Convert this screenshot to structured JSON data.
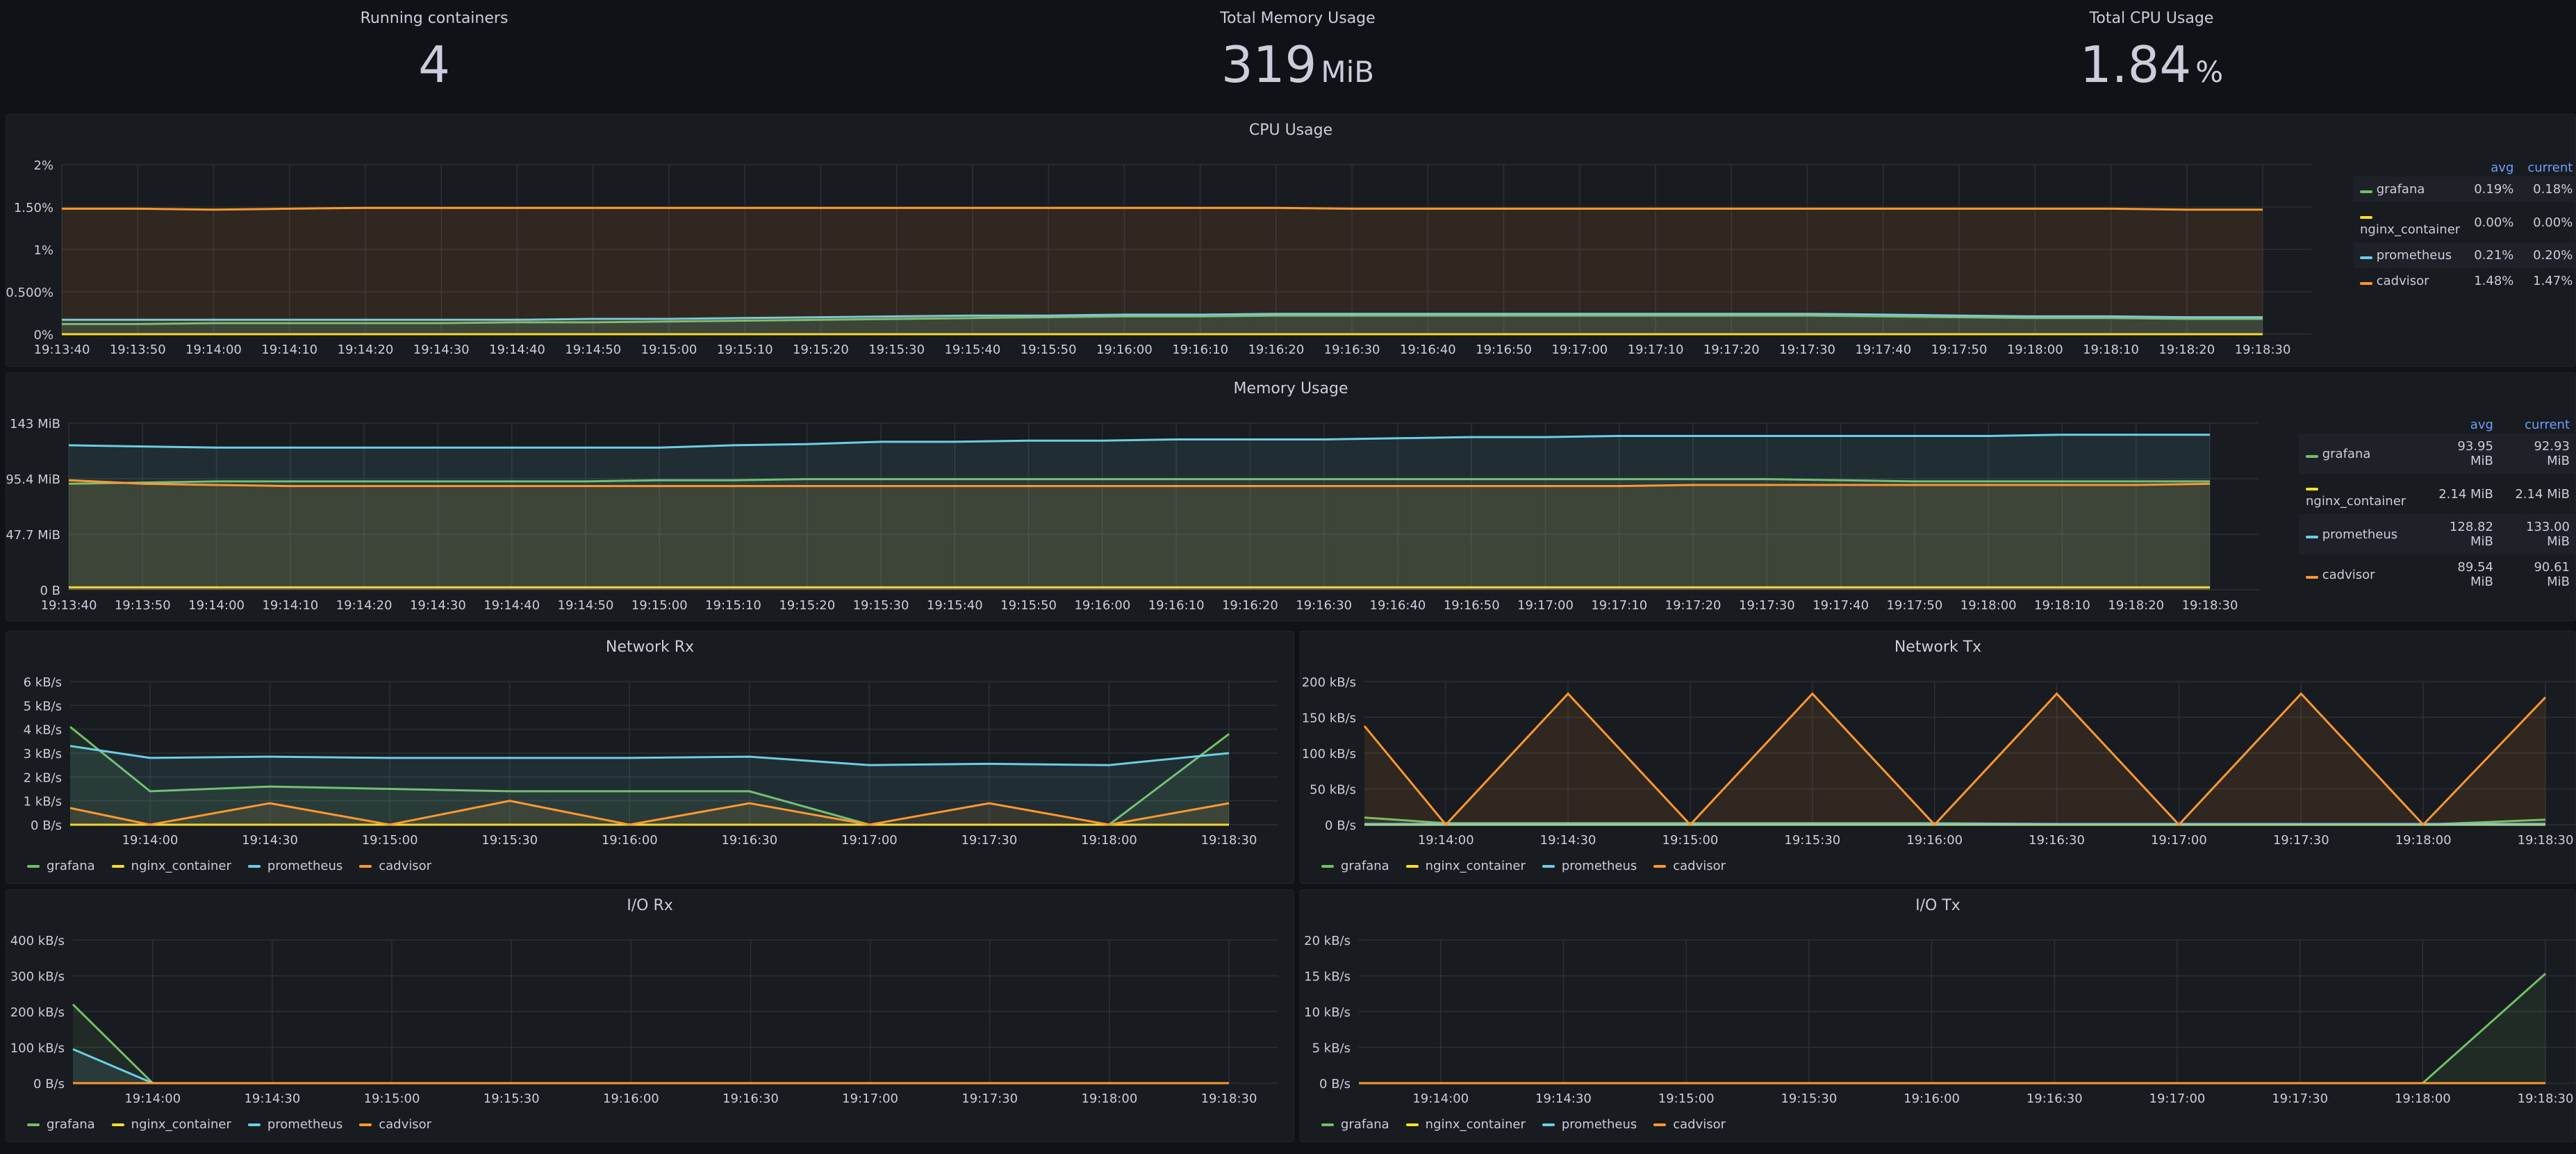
{
  "stats": [
    {
      "title": "Running containers",
      "value": "4",
      "unit": ""
    },
    {
      "title": "Total Memory Usage",
      "value": "319",
      "unit": "MiB"
    },
    {
      "title": "Total CPU Usage",
      "value": "1.84",
      "unit": "%"
    }
  ],
  "colors": {
    "grafana": "#73bf69",
    "nginx_container": "#fade2a",
    "prometheus": "#8ab8ff",
    "cadvisor": "#ff9830",
    "prometheus_line": "#6ccde6"
  },
  "legend_labels": [
    "grafana",
    "nginx_container",
    "prometheus",
    "cadvisor"
  ],
  "cpu": {
    "title": "CPU Usage",
    "legend_headers": [
      "avg",
      "current"
    ],
    "legend_rows": [
      {
        "name": "grafana",
        "avg": "0.19%",
        "current": "0.18%"
      },
      {
        "name": "nginx_container",
        "avg": "0.00%",
        "current": "0.00%"
      },
      {
        "name": "prometheus",
        "avg": "0.21%",
        "current": "0.20%"
      },
      {
        "name": "cadvisor",
        "avg": "1.48%",
        "current": "1.47%"
      }
    ]
  },
  "memory": {
    "title": "Memory Usage",
    "legend_headers": [
      "avg",
      "current"
    ],
    "legend_rows": [
      {
        "name": "grafana",
        "avg": "93.95 MiB",
        "current": "92.93 MiB"
      },
      {
        "name": "nginx_container",
        "avg": "2.14 MiB",
        "current": "2.14 MiB"
      },
      {
        "name": "prometheus",
        "avg": "128.82 MiB",
        "current": "133.00 MiB"
      },
      {
        "name": "cadvisor",
        "avg": "89.54 MiB",
        "current": "90.61 MiB"
      }
    ]
  },
  "netrx": {
    "title": "Network Rx"
  },
  "nettx": {
    "title": "Network Tx"
  },
  "iorx": {
    "title": "I/O Rx"
  },
  "iotx": {
    "title": "I/O Tx"
  },
  "chart_data": [
    {
      "id": "cpu",
      "type": "line",
      "title": "CPU Usage",
      "x": [
        "19:13:40",
        "19:13:50",
        "19:14:00",
        "19:14:10",
        "19:14:20",
        "19:14:30",
        "19:14:40",
        "19:14:50",
        "19:15:00",
        "19:15:10",
        "19:15:20",
        "19:15:30",
        "19:15:40",
        "19:15:50",
        "19:16:00",
        "19:16:10",
        "19:16:20",
        "19:16:30",
        "19:16:40",
        "19:16:50",
        "19:17:00",
        "19:17:10",
        "19:17:20",
        "19:17:30",
        "19:17:40",
        "19:17:50",
        "19:18:00",
        "19:18:10",
        "19:18:20",
        "19:18:30"
      ],
      "ylim": [
        0,
        2
      ],
      "yticks": [
        "0%",
        "0.500%",
        "1%",
        "1.50%",
        "2%"
      ],
      "series": [
        {
          "name": "grafana",
          "values": [
            0.12,
            0.12,
            0.13,
            0.13,
            0.13,
            0.13,
            0.14,
            0.14,
            0.15,
            0.16,
            0.17,
            0.18,
            0.19,
            0.2,
            0.21,
            0.21,
            0.22,
            0.22,
            0.22,
            0.22,
            0.22,
            0.22,
            0.22,
            0.22,
            0.21,
            0.2,
            0.19,
            0.19,
            0.18,
            0.18
          ]
        },
        {
          "name": "nginx_container",
          "values": [
            0,
            0,
            0,
            0,
            0,
            0,
            0,
            0,
            0,
            0,
            0,
            0,
            0,
            0,
            0,
            0,
            0,
            0,
            0,
            0,
            0,
            0,
            0,
            0,
            0,
            0,
            0,
            0,
            0,
            0
          ]
        },
        {
          "name": "prometheus",
          "values": [
            0.17,
            0.17,
            0.17,
            0.17,
            0.17,
            0.17,
            0.17,
            0.18,
            0.18,
            0.19,
            0.2,
            0.21,
            0.22,
            0.22,
            0.23,
            0.23,
            0.24,
            0.24,
            0.24,
            0.24,
            0.24,
            0.24,
            0.24,
            0.24,
            0.23,
            0.22,
            0.21,
            0.21,
            0.2,
            0.2
          ]
        },
        {
          "name": "cadvisor",
          "values": [
            1.48,
            1.48,
            1.47,
            1.48,
            1.49,
            1.49,
            1.49,
            1.49,
            1.49,
            1.49,
            1.49,
            1.49,
            1.49,
            1.49,
            1.49,
            1.49,
            1.49,
            1.48,
            1.48,
            1.48,
            1.48,
            1.48,
            1.48,
            1.48,
            1.48,
            1.48,
            1.48,
            1.48,
            1.47,
            1.47
          ]
        }
      ]
    },
    {
      "id": "memory",
      "type": "area",
      "title": "Memory Usage",
      "x": [
        "19:13:40",
        "19:13:50",
        "19:14:00",
        "19:14:10",
        "19:14:20",
        "19:14:30",
        "19:14:40",
        "19:14:50",
        "19:15:00",
        "19:15:10",
        "19:15:20",
        "19:15:30",
        "19:15:40",
        "19:15:50",
        "19:16:00",
        "19:16:10",
        "19:16:20",
        "19:16:30",
        "19:16:40",
        "19:16:50",
        "19:17:00",
        "19:17:10",
        "19:17:20",
        "19:17:30",
        "19:17:40",
        "19:17:50",
        "19:18:00",
        "19:18:10",
        "19:18:20",
        "19:18:30"
      ],
      "ylim": [
        0,
        143
      ],
      "yticks": [
        "0 B",
        "47.7 MiB",
        "95.4 MiB",
        "143 MiB"
      ],
      "series": [
        {
          "name": "grafana",
          "values": [
            91,
            92,
            93,
            93,
            93,
            93,
            93,
            93,
            94,
            94,
            95,
            95,
            95,
            95,
            95,
            95,
            95,
            95,
            95,
            95,
            95,
            95,
            95,
            95,
            94,
            93,
            93,
            93,
            93,
            93
          ]
        },
        {
          "name": "nginx_container",
          "values": [
            2.14,
            2.14,
            2.14,
            2.14,
            2.14,
            2.14,
            2.14,
            2.14,
            2.14,
            2.14,
            2.14,
            2.14,
            2.14,
            2.14,
            2.14,
            2.14,
            2.14,
            2.14,
            2.14,
            2.14,
            2.14,
            2.14,
            2.14,
            2.14,
            2.14,
            2.14,
            2.14,
            2.14,
            2.14,
            2.14
          ]
        },
        {
          "name": "prometheus",
          "values": [
            124,
            123,
            122,
            122,
            122,
            122,
            122,
            122,
            122,
            124,
            125,
            127,
            127,
            128,
            128,
            129,
            129,
            129,
            130,
            131,
            131,
            132,
            132,
            132,
            132,
            132,
            132,
            133,
            133,
            133
          ]
        },
        {
          "name": "cadvisor",
          "values": [
            94,
            91,
            90,
            89,
            89,
            89,
            89,
            89,
            89,
            89,
            89,
            89,
            89,
            89,
            89,
            89,
            89,
            89,
            89,
            89,
            89,
            89,
            90,
            90,
            90,
            90,
            90,
            90,
            90,
            91
          ]
        }
      ]
    },
    {
      "id": "netrx",
      "type": "area",
      "title": "Network Rx",
      "x": [
        "19:13:40",
        "19:14:00",
        "19:14:30",
        "19:15:00",
        "19:15:30",
        "19:16:00",
        "19:16:30",
        "19:17:00",
        "19:17:30",
        "19:18:00",
        "19:18:30"
      ],
      "xticks": [
        "19:14:00",
        "19:14:30",
        "19:15:00",
        "19:15:30",
        "19:16:00",
        "19:16:30",
        "19:17:00",
        "19:17:30",
        "19:18:00",
        "19:18:30"
      ],
      "ylim": [
        0,
        6
      ],
      "yticks": [
        "0 B/s",
        "1 kB/s",
        "2 kB/s",
        "3 kB/s",
        "4 kB/s",
        "5 kB/s",
        "6 kB/s"
      ],
      "series": [
        {
          "name": "grafana",
          "values": [
            4.1,
            1.4,
            1.6,
            1.5,
            1.4,
            1.4,
            1.4,
            0,
            0,
            0,
            3.8
          ]
        },
        {
          "name": "nginx_container",
          "values": [
            0,
            0,
            0,
            0,
            0,
            0,
            0,
            0,
            0,
            0,
            0
          ]
        },
        {
          "name": "prometheus",
          "values": [
            3.3,
            2.8,
            2.85,
            2.8,
            2.8,
            2.8,
            2.85,
            2.5,
            2.55,
            2.5,
            3.0
          ]
        },
        {
          "name": "cadvisor",
          "values": [
            0.7,
            0,
            0.9,
            0,
            1.0,
            0,
            0.9,
            0,
            0.9,
            0,
            0.9
          ]
        }
      ]
    },
    {
      "id": "nettx",
      "type": "area",
      "title": "Network Tx",
      "x": [
        "19:13:40",
        "19:14:00",
        "19:14:30",
        "19:15:00",
        "19:15:30",
        "19:16:00",
        "19:16:30",
        "19:17:00",
        "19:17:30",
        "19:18:00",
        "19:18:30"
      ],
      "xticks": [
        "19:14:00",
        "19:14:30",
        "19:15:00",
        "19:15:30",
        "19:16:00",
        "19:16:30",
        "19:17:00",
        "19:17:30",
        "19:18:00",
        "19:18:30"
      ],
      "ylim": [
        0,
        200
      ],
      "yticks": [
        "0 B/s",
        "50 kB/s",
        "100 kB/s",
        "150 kB/s",
        "200 kB/s"
      ],
      "series": [
        {
          "name": "grafana",
          "values": [
            10,
            2,
            2,
            2,
            2,
            2,
            1,
            0,
            0,
            0,
            7
          ]
        },
        {
          "name": "nginx_container",
          "values": [
            0,
            0,
            0,
            0,
            0,
            0,
            0,
            0,
            0,
            0,
            0
          ]
        },
        {
          "name": "prometheus",
          "values": [
            1,
            1,
            1,
            1,
            1,
            1,
            1,
            1,
            1,
            1,
            1
          ]
        },
        {
          "name": "cadvisor",
          "values": [
            138,
            0,
            183,
            0,
            183,
            0,
            183,
            0,
            183,
            0,
            178
          ]
        }
      ]
    },
    {
      "id": "iorx",
      "type": "area",
      "title": "I/O Rx",
      "x": [
        "19:13:40",
        "19:14:00",
        "19:14:30",
        "19:15:00",
        "19:15:30",
        "19:16:00",
        "19:16:30",
        "19:17:00",
        "19:17:30",
        "19:18:00",
        "19:18:30"
      ],
      "xticks": [
        "19:14:00",
        "19:14:30",
        "19:15:00",
        "19:15:30",
        "19:16:00",
        "19:16:30",
        "19:17:00",
        "19:17:30",
        "19:18:00",
        "19:18:30"
      ],
      "ylim": [
        0,
        400
      ],
      "yticks": [
        "0 B/s",
        "100 kB/s",
        "200 kB/s",
        "300 kB/s",
        "400 kB/s"
      ],
      "series": [
        {
          "name": "grafana",
          "values": [
            220,
            0,
            0,
            0,
            0,
            0,
            0,
            0,
            0,
            0,
            0
          ]
        },
        {
          "name": "nginx_container",
          "values": [
            0,
            0,
            0,
            0,
            0,
            0,
            0,
            0,
            0,
            0,
            0
          ]
        },
        {
          "name": "prometheus",
          "values": [
            95,
            0,
            0,
            0,
            0,
            0,
            0,
            0,
            0,
            0,
            0
          ]
        },
        {
          "name": "cadvisor",
          "values": [
            0,
            0,
            0,
            0,
            0,
            0,
            0,
            0,
            0,
            0,
            0
          ]
        }
      ]
    },
    {
      "id": "iotx",
      "type": "area",
      "title": "I/O Tx",
      "x": [
        "19:13:40",
        "19:14:00",
        "19:14:30",
        "19:15:00",
        "19:15:30",
        "19:16:00",
        "19:16:30",
        "19:17:00",
        "19:17:30",
        "19:18:00",
        "19:18:30"
      ],
      "xticks": [
        "19:14:00",
        "19:14:30",
        "19:15:00",
        "19:15:30",
        "19:16:00",
        "19:16:30",
        "19:17:00",
        "19:17:30",
        "19:18:00",
        "19:18:30"
      ],
      "ylim": [
        0,
        20
      ],
      "yticks": [
        "0 B/s",
        "5 kB/s",
        "10 kB/s",
        "15 kB/s",
        "20 kB/s"
      ],
      "series": [
        {
          "name": "grafana",
          "values": [
            0,
            0,
            0,
            0,
            0,
            0,
            0,
            0,
            0,
            0,
            15.3
          ]
        },
        {
          "name": "nginx_container",
          "values": [
            0,
            0,
            0,
            0,
            0,
            0,
            0,
            0,
            0,
            0,
            0
          ]
        },
        {
          "name": "prometheus",
          "values": [
            0,
            0,
            0,
            0,
            0,
            0,
            0,
            0,
            0,
            0,
            0
          ]
        },
        {
          "name": "cadvisor",
          "values": [
            0,
            0,
            0,
            0,
            0,
            0,
            0,
            0,
            0,
            0,
            0
          ]
        }
      ]
    }
  ]
}
